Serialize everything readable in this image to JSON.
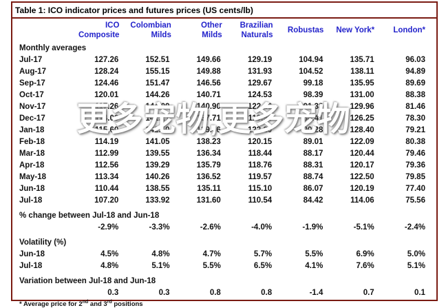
{
  "title": "Table 1:  ICO indicator prices and futures prices (US cents/lb)",
  "watermark": {
    "text": "更多宠物,更多宠物"
  },
  "colors": {
    "border_maroon": "#7a1b12",
    "header_blue": "#2323cb",
    "text_black": "#111111",
    "watermark_white": "#ffffff"
  },
  "table": {
    "columns": [
      {
        "line1": "ICO",
        "line2": "Composite"
      },
      {
        "line1": "Colombian",
        "line2": "Milds"
      },
      {
        "line1": "Other",
        "line2": "Milds"
      },
      {
        "line1": "Brazilian",
        "line2": "Naturals"
      },
      {
        "line1": "Robustas",
        "line2": ""
      },
      {
        "line1": "New York*",
        "line2": ""
      },
      {
        "line1": "London*",
        "line2": ""
      }
    ],
    "sections": {
      "monthly_label": "Monthly averages",
      "monthly_rows": [
        {
          "label": "Jul-17",
          "values": [
            "127.26",
            "152.51",
            "149.66",
            "129.19",
            "104.94",
            "135.71",
            "96.03"
          ]
        },
        {
          "label": "Aug-17",
          "values": [
            "128.24",
            "155.15",
            "149.88",
            "131.93",
            "104.52",
            "138.11",
            "94.89"
          ]
        },
        {
          "label": "Sep-17",
          "values": [
            "124.46",
            "151.47",
            "146.56",
            "129.67",
            "99.18",
            "135.95",
            "89.69"
          ]
        },
        {
          "label": "Oct-17",
          "values": [
            "120.01",
            "144.26",
            "140.71",
            "124.53",
            "98.39",
            "131.00",
            "88.38"
          ]
        },
        {
          "label": "Nov-17",
          "values": [
            "117.26",
            "144.09",
            "140.90",
            "122.46",
            "91.33",
            "129.96",
            "81.46"
          ]
        },
        {
          "label": "Dec-17",
          "values": [
            "114.00",
            "141.21",
            "137.71",
            "119.93",
            "88.41",
            "126.25",
            "78.30"
          ]
        },
        {
          "label": "Jan-18",
          "values": [
            "115.60",
            "142.50",
            "139.66",
            "122.20",
            "90.28",
            "128.40",
            "79.21"
          ]
        },
        {
          "label": "Feb-18",
          "values": [
            "114.19",
            "141.05",
            "138.23",
            "120.15",
            "89.01",
            "122.09",
            "80.38"
          ]
        },
        {
          "label": "Mar-18",
          "values": [
            "112.99",
            "139.55",
            "136.34",
            "118.44",
            "88.17",
            "120.44",
            "79.46"
          ]
        },
        {
          "label": "Apr-18",
          "values": [
            "112.56",
            "139.29",
            "135.79",
            "118.76",
            "88.31",
            "120.17",
            "79.36"
          ]
        },
        {
          "label": "May-18",
          "values": [
            "113.34",
            "140.26",
            "136.52",
            "119.57",
            "88.74",
            "122.50",
            "79.85"
          ]
        },
        {
          "label": "Jun-18",
          "values": [
            "110.44",
            "138.55",
            "135.11",
            "115.10",
            "86.07",
            "120.19",
            "77.40"
          ]
        },
        {
          "label": "Jul-18",
          "values": [
            "107.20",
            "133.92",
            "131.60",
            "110.54",
            "84.42",
            "114.06",
            "75.56"
          ]
        }
      ],
      "pct_change_label": "% change between Jul-18 and Jun-18",
      "pct_change_values": [
        "-2.9%",
        "-3.3%",
        "-2.6%",
        "-4.0%",
        "-1.9%",
        "-5.1%",
        "-2.4%"
      ],
      "volatility_label": "Volatility (%)",
      "volatility_rows": [
        {
          "label": "Jun-18",
          "values": [
            "4.5%",
            "4.8%",
            "4.7%",
            "5.7%",
            "5.5%",
            "6.9%",
            "5.0%"
          ]
        },
        {
          "label": "Jul-18",
          "values": [
            "4.8%",
            "5.1%",
            "5.5%",
            "6.5%",
            "4.1%",
            "7.6%",
            "5.1%"
          ]
        }
      ],
      "variation_label": "Variation between Jul-18 and Jun-18",
      "variation_values": [
        "0.3",
        "0.3",
        "0.8",
        "0.8",
        "-1.4",
        "0.7",
        "0.1"
      ],
      "footnote": {
        "pre": "* Average price for 2",
        "sup1": "nd",
        "mid": " and 3",
        "sup2": "rd",
        "post": " positions"
      }
    }
  }
}
